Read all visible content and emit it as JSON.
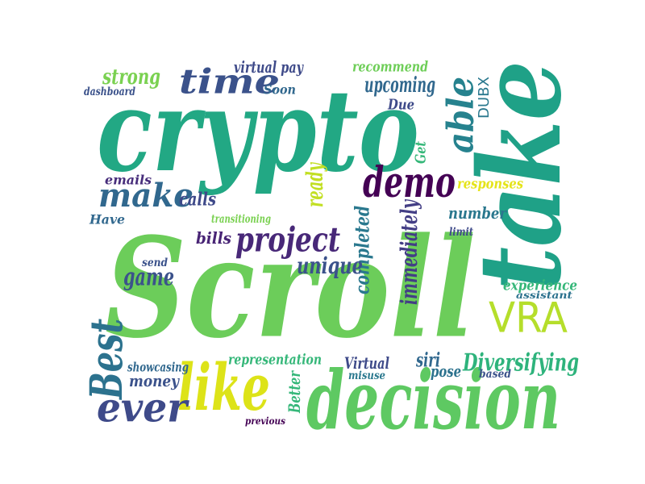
{
  "wordcloud": {
    "words": [
      {
        "text": "Scroll",
        "color": "#6ccd5a"
      },
      {
        "text": "crypto",
        "color": "#22a884"
      },
      {
        "text": "take",
        "color": "#1fa187"
      },
      {
        "text": "decision",
        "color": "#5ec962"
      },
      {
        "text": "like",
        "color": "#dde318"
      },
      {
        "text": "time",
        "color": "#3b528b"
      },
      {
        "text": "demo",
        "color": "#440154"
      },
      {
        "text": "project",
        "color": "#482878"
      },
      {
        "text": "make",
        "color": "#31688e"
      },
      {
        "text": "able",
        "color": "#26828e"
      },
      {
        "text": "VRA",
        "color": "#b5de2b"
      },
      {
        "text": "ever",
        "color": "#3e4a89"
      },
      {
        "text": "Best",
        "color": "#2c728e"
      },
      {
        "text": "Diversifying",
        "color": "#2eb37c"
      },
      {
        "text": "strong",
        "color": "#7ad151"
      },
      {
        "text": "game",
        "color": "#3b528b"
      },
      {
        "text": "experience",
        "color": "#35b779"
      },
      {
        "text": "immediately",
        "color": "#433e85"
      },
      {
        "text": "completed",
        "color": "#2a788e"
      },
      {
        "text": "unique",
        "color": "#3b528b"
      },
      {
        "text": "ready",
        "color": "#c2df23"
      },
      {
        "text": "upcoming",
        "color": "#31688e"
      },
      {
        "text": "recommend",
        "color": "#6ece58"
      },
      {
        "text": "virtual pay",
        "color": "#3e4a89"
      },
      {
        "text": "dashboard",
        "color": "#3b528b"
      },
      {
        "text": "Soon",
        "color": "#31688e"
      },
      {
        "text": "Due",
        "color": "#3e4a89"
      },
      {
        "text": "DUBX",
        "color": "#2a788e"
      },
      {
        "text": "Get",
        "color": "#35b779"
      },
      {
        "text": "emails",
        "color": "#472d7b"
      },
      {
        "text": "calls",
        "color": "#3e4989"
      },
      {
        "text": "responses",
        "color": "#e5e419"
      },
      {
        "text": "number",
        "color": "#2a788e"
      },
      {
        "text": "transitioning",
        "color": "#7ad151"
      },
      {
        "text": "Have",
        "color": "#31688e"
      },
      {
        "text": "bills",
        "color": "#482475"
      },
      {
        "text": "limit",
        "color": "#3e4a89"
      },
      {
        "text": "send",
        "color": "#3b528b"
      },
      {
        "text": "assistant",
        "color": "#2c728e"
      },
      {
        "text": "representation",
        "color": "#35b779"
      },
      {
        "text": "Virtual",
        "color": "#3e4a89"
      },
      {
        "text": "siri",
        "color": "#31688e"
      },
      {
        "text": "pose",
        "color": "#2c728e"
      },
      {
        "text": "misuse",
        "color": "#2a788e"
      },
      {
        "text": "based",
        "color": "#3b528b"
      },
      {
        "text": "showcasing",
        "color": "#31688e"
      },
      {
        "text": "money",
        "color": "#3b528b"
      },
      {
        "text": "Better",
        "color": "#35b779"
      },
      {
        "text": "previous",
        "color": "#440154"
      }
    ]
  }
}
